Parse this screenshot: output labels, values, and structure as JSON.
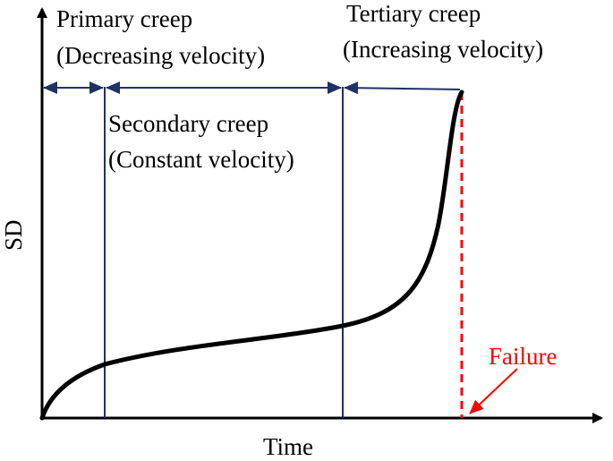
{
  "axes": {
    "x_label": "Time",
    "y_label": "SD"
  },
  "stages": {
    "primary": {
      "title": "Primary creep",
      "subtitle": "(Decreasing velocity)"
    },
    "secondary": {
      "title": "Secondary creep",
      "subtitle": "(Constant velocity)"
    },
    "tertiary": {
      "title": "Tertiary creep",
      "subtitle": "(Increasing velocity)"
    }
  },
  "failure": {
    "label": "Failure"
  },
  "colors": {
    "axis": "#000000",
    "curve": "#000000",
    "stage_lines": "#1f3264",
    "failure": "#ff0000"
  }
}
